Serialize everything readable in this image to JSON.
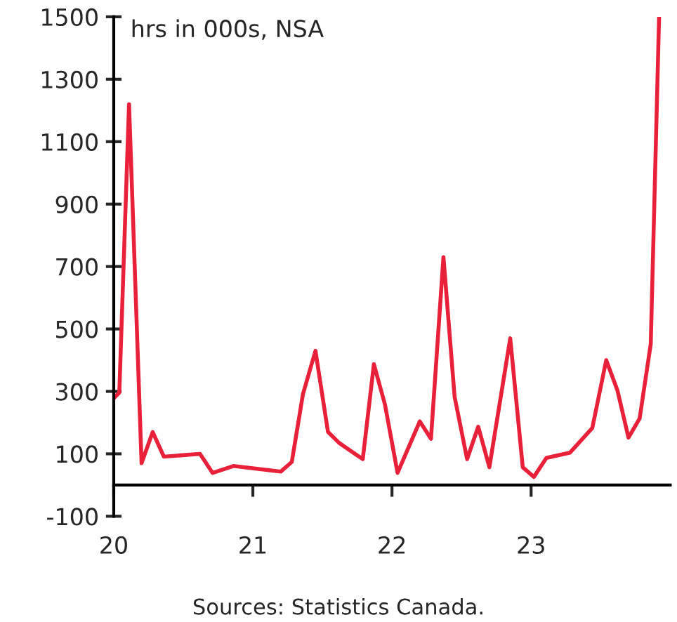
{
  "chart_data": {
    "type": "line",
    "subtitle": "hrs in 000s, NSA",
    "x": [
      2020.0,
      2020.04,
      2020.11,
      2020.2,
      2020.28,
      2020.36,
      2020.62,
      2020.71,
      2020.86,
      2021.2,
      2021.28,
      2021.36,
      2021.45,
      2021.54,
      2021.62,
      2021.79,
      2021.87,
      2021.95,
      2022.04,
      2022.2,
      2022.28,
      2022.37,
      2022.45,
      2022.54,
      2022.62,
      2022.7,
      2022.85,
      2022.94,
      2023.02,
      2023.11,
      2023.28,
      2023.44,
      2023.54,
      2023.62,
      2023.7,
      2023.78,
      2023.86,
      2023.92
    ],
    "series": [
      {
        "color": "#e8203a",
        "values": [
          278,
          296,
          1220,
          70,
          170,
          91,
          100,
          39,
          61,
          43,
          74,
          291,
          430,
          170,
          135,
          83,
          387,
          257,
          39,
          204,
          148,
          730,
          283,
          83,
          187,
          57,
          470,
          57,
          26,
          87,
          104,
          183,
          400,
          304,
          152,
          213,
          452,
          1500
        ]
      }
    ],
    "xlim": [
      2020,
      2024
    ],
    "xticks": [
      {
        "value": 2020,
        "label": "20"
      },
      {
        "value": 2021,
        "label": "21"
      },
      {
        "value": 2022,
        "label": "22"
      },
      {
        "value": 2023,
        "label": "23"
      }
    ],
    "ylim": [
      -100,
      1500
    ],
    "yticks": [
      -100,
      100,
      300,
      500,
      700,
      900,
      1100,
      1300,
      1500
    ],
    "grid": false,
    "legend": false,
    "marker": "none",
    "line_style": "solid",
    "annotations": [
      "Sources: Statistics Canada."
    ]
  }
}
